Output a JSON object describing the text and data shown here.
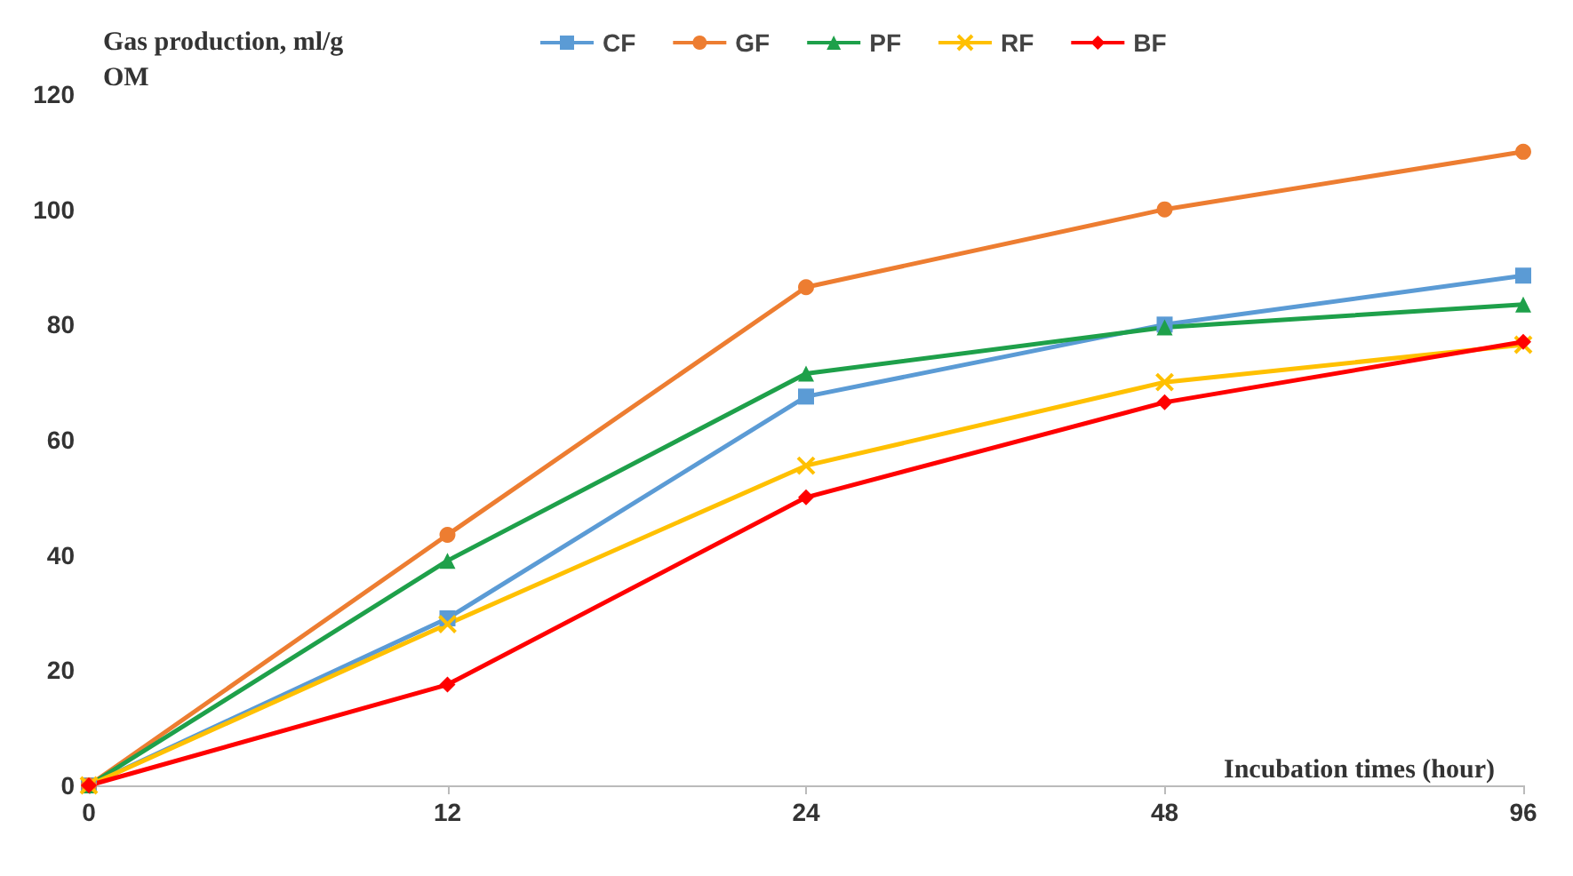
{
  "chart_data": {
    "type": "line",
    "xlabel": "Incubation times (hour)",
    "ylabel": "Gas production, ml/g OM",
    "categories": [
      "0",
      "12",
      "24",
      "48",
      "96"
    ],
    "ylim": [
      0,
      120
    ],
    "yticks": [
      0,
      20,
      40,
      60,
      80,
      100,
      120
    ],
    "grid": false,
    "legend": "top",
    "series": [
      {
        "name": "CF",
        "color": "#5b9bd5",
        "marker": "square",
        "values": [
          0,
          29,
          67.5,
          80,
          88.5
        ]
      },
      {
        "name": "GF",
        "color": "#ed7d31",
        "marker": "circle",
        "values": [
          0,
          43.5,
          86.5,
          100,
          110
        ]
      },
      {
        "name": "PF",
        "color": "#1ea04a",
        "marker": "triangle",
        "values": [
          0,
          39,
          71.5,
          79.5,
          83.5
        ]
      },
      {
        "name": "RF",
        "color": "#ffc000",
        "marker": "cross",
        "values": [
          0,
          28,
          55.5,
          70,
          76.5
        ]
      },
      {
        "name": "BF",
        "color": "#ff0000",
        "marker": "diamond",
        "values": [
          0,
          17.5,
          50,
          66.5,
          77
        ]
      }
    ]
  }
}
